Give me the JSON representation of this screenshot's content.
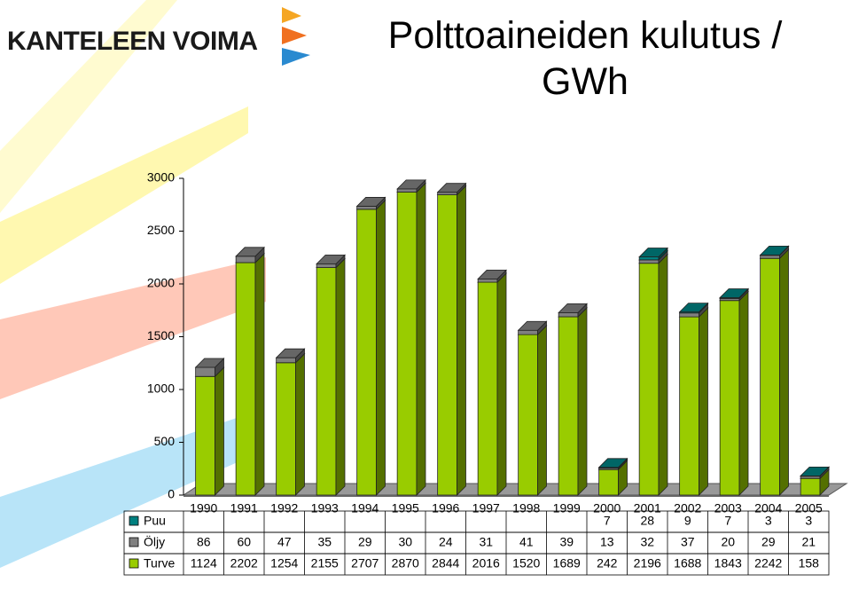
{
  "logo": "KANTELEEN VOIMA",
  "chart_data": {
    "type": "bar3d-stacked",
    "title": "Polttoaineiden kulutus / GWh",
    "categories": [
      "1990",
      "1991",
      "1992",
      "1993",
      "1994",
      "1995",
      "1996",
      "1997",
      "1998",
      "1999",
      "2000",
      "2001",
      "2002",
      "2003",
      "2004",
      "2005"
    ],
    "series": [
      {
        "name": "Turve",
        "color": "#99cc00",
        "values": [
          1124,
          2202,
          1254,
          2155,
          2707,
          2870,
          2844,
          2016,
          1520,
          1689,
          242,
          2196,
          1688,
          1843,
          2242,
          158
        ]
      },
      {
        "name": "Öljy",
        "color": "#808080",
        "values": [
          86,
          60,
          47,
          35,
          29,
          30,
          24,
          31,
          41,
          39,
          13,
          32,
          37,
          20,
          29,
          21
        ]
      },
      {
        "name": "Puu",
        "color": "#008080",
        "values": [
          null,
          null,
          null,
          null,
          null,
          null,
          null,
          null,
          null,
          null,
          7,
          28,
          9,
          7,
          3,
          3
        ]
      }
    ],
    "ylim": [
      0,
      3000
    ],
    "yticks": [
      0,
      500,
      1000,
      1500,
      2000,
      2500,
      3000
    ],
    "data_table": true
  }
}
